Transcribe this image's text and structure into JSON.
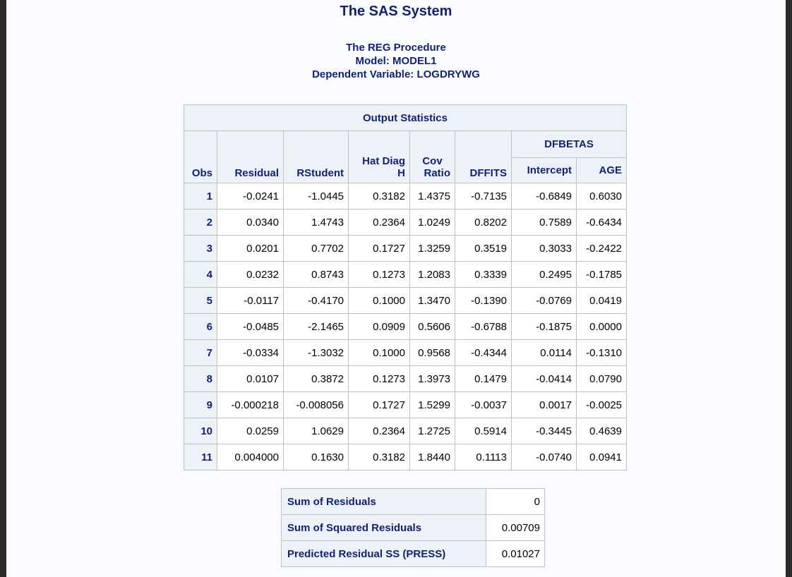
{
  "title": "The SAS System",
  "procedure": "The REG Procedure",
  "model": "Model: MODEL1",
  "dependent": "Dependent Variable: LOGDRYWG",
  "output_statistics": {
    "caption": "Output Statistics",
    "group_header": "DFBETAS",
    "columns": {
      "obs": "Obs",
      "residual": "Residual",
      "rstudent": "RStudent",
      "hat_line1": "Hat Diag",
      "hat_line2": "H",
      "cov_line1": "Cov",
      "cov_line2": "Ratio",
      "dffits": "DFFITS",
      "intercept": "Intercept",
      "age": "AGE"
    },
    "rows": [
      [
        "1",
        "-0.0241",
        "-1.0445",
        "0.3182",
        "1.4375",
        "-0.7135",
        "-0.6849",
        "0.6030"
      ],
      [
        "2",
        "0.0340",
        "1.4743",
        "0.2364",
        "1.0249",
        "0.8202",
        "0.7589",
        "-0.6434"
      ],
      [
        "3",
        "0.0201",
        "0.7702",
        "0.1727",
        "1.3259",
        "0.3519",
        "0.3033",
        "-0.2422"
      ],
      [
        "4",
        "0.0232",
        "0.8743",
        "0.1273",
        "1.2083",
        "0.3339",
        "0.2495",
        "-0.1785"
      ],
      [
        "5",
        "-0.0117",
        "-0.4170",
        "0.1000",
        "1.3470",
        "-0.1390",
        "-0.0769",
        "0.0419"
      ],
      [
        "6",
        "-0.0485",
        "-2.1465",
        "0.0909",
        "0.5606",
        "-0.6788",
        "-0.1875",
        "0.0000"
      ],
      [
        "7",
        "-0.0334",
        "-1.3032",
        "0.1000",
        "0.9568",
        "-0.4344",
        "0.0114",
        "-0.1310"
      ],
      [
        "8",
        "0.0107",
        "0.3872",
        "0.1273",
        "1.3973",
        "0.1479",
        "-0.0414",
        "0.0790"
      ],
      [
        "9",
        "-0.000218",
        "-0.008056",
        "0.1727",
        "1.5299",
        "-0.0037",
        "0.0017",
        "-0.0025"
      ],
      [
        "10",
        "0.0259",
        "1.0629",
        "0.2364",
        "1.2725",
        "0.5914",
        "-0.3445",
        "0.4639"
      ],
      [
        "11",
        "0.004000",
        "0.1630",
        "0.3182",
        "1.8440",
        "0.1113",
        "-0.0740",
        "0.0941"
      ]
    ]
  },
  "summary": [
    {
      "label": "Sum of Residuals",
      "value": "0"
    },
    {
      "label": "Sum of Squared Residuals",
      "value": "0.00709"
    },
    {
      "label": "Predicted Residual SS (PRESS)",
      "value": "0.01027"
    }
  ]
}
